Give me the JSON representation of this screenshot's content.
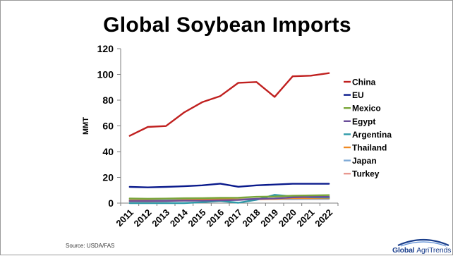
{
  "slide": {
    "title": "Global Soybean Imports",
    "source": "Source:  USDA/FAS",
    "logo": {
      "brand": "Global",
      "sub": "AgriTrends",
      "colors": {
        "arc": "#1b3f8c",
        "text": "#1b3f8c"
      }
    }
  },
  "chart_data": {
    "type": "line",
    "title": "Global Soybean Imports",
    "xlabel": "",
    "ylabel": "MMT",
    "categories": [
      "2011",
      "2012",
      "2013",
      "2014",
      "2015",
      "2016",
      "2017",
      "2018",
      "2019",
      "2020",
      "2021",
      "2022"
    ],
    "ylim": [
      0,
      120
    ],
    "yticks": [
      0,
      20,
      40,
      60,
      80,
      100,
      120
    ],
    "grid": false,
    "legend": "right",
    "series": [
      {
        "name": "China",
        "color": "#c0201f",
        "values": [
          52.3,
          59.2,
          59.9,
          70.4,
          78.4,
          83.2,
          93.5,
          94.1,
          82.5,
          98.5,
          99.0,
          101.0
        ]
      },
      {
        "name": "EU",
        "color": "#0a1a8c",
        "values": [
          12.6,
          12.2,
          12.6,
          13.1,
          13.8,
          15.1,
          12.7,
          13.8,
          14.4,
          15.0,
          15.0,
          15.0
        ]
      },
      {
        "name": "Mexico",
        "color": "#7aa63a",
        "values": [
          3.6,
          3.4,
          3.5,
          3.8,
          3.9,
          4.1,
          4.2,
          4.9,
          5.1,
          5.8,
          6.0,
          6.2
        ]
      },
      {
        "name": "Egypt",
        "color": "#6b4e9a",
        "values": [
          1.6,
          1.7,
          1.7,
          1.9,
          2.0,
          2.2,
          2.4,
          3.3,
          3.6,
          4.5,
          4.8,
          4.9
        ]
      },
      {
        "name": "Argentina",
        "color": "#2e9aa8",
        "values": [
          0.0,
          0.0,
          0.0,
          0.0,
          0.7,
          1.7,
          0.3,
          2.6,
          6.4,
          5.2,
          4.5,
          4.3
        ]
      },
      {
        "name": "Thailand",
        "color": "#f08a24",
        "values": [
          2.1,
          1.9,
          1.8,
          2.4,
          2.7,
          3.0,
          2.8,
          3.1,
          3.2,
          3.9,
          3.7,
          3.8
        ]
      },
      {
        "name": "Japan",
        "color": "#7faad6",
        "values": [
          2.9,
          2.8,
          2.9,
          3.0,
          3.1,
          3.2,
          3.3,
          3.2,
          3.2,
          3.1,
          3.2,
          3.3
        ]
      },
      {
        "name": "Turkey",
        "color": "#e8988f",
        "values": [
          1.4,
          1.2,
          1.5,
          2.0,
          2.0,
          2.4,
          2.9,
          2.9,
          3.2,
          3.0,
          3.2,
          3.3
        ]
      }
    ]
  }
}
